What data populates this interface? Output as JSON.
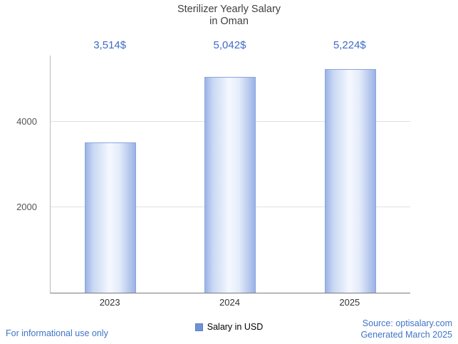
{
  "title": {
    "line1": "Sterilizer Yearly Salary",
    "line2": "in Oman"
  },
  "chart_data": {
    "type": "bar",
    "title": "Sterilizer Yearly Salary in Oman",
    "categories": [
      "2023",
      "2024",
      "2025"
    ],
    "values": [
      3514,
      5042,
      5224
    ],
    "value_labels": [
      "3,514$",
      "5,042$",
      "5,224$"
    ],
    "series_name": "Salary in USD",
    "xlabel": "",
    "ylabel": "",
    "ylim": [
      0,
      5545
    ],
    "yticks": [
      2000,
      4000
    ],
    "ytick_labels": [
      "2000",
      "4000"
    ],
    "grid": true,
    "legend_position": "bottom"
  },
  "legend": {
    "label": "Salary in USD"
  },
  "footer": {
    "left": "For informational use only",
    "source": "Source: optisalary.com",
    "generated": "Generated March 2025"
  },
  "colors": {
    "accent_blue": "#3f6bc7",
    "link_blue": "#3f74c9",
    "bar_edge": "#8aa4e0",
    "bar_fill_light": "#f5f8fe",
    "legend_swatch": "#7191d6",
    "title_gray": "#3f3f3f",
    "gridline": "#e0e0e0"
  }
}
